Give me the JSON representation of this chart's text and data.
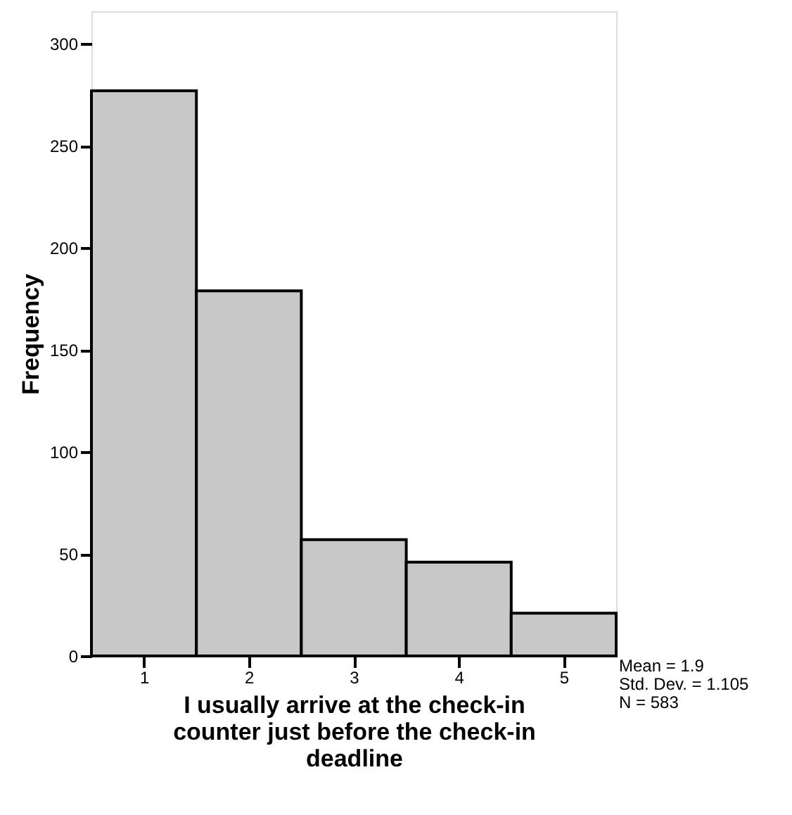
{
  "chart_data": {
    "type": "histogram",
    "bins": [
      0.5,
      1.5,
      2.5,
      3.5,
      4.5,
      5.5
    ],
    "values": [
      277,
      179,
      57,
      46,
      21
    ],
    "color": "#c8c8c8",
    "xlim": [
      0.5,
      5.5
    ],
    "xticks": [
      1,
      2,
      3,
      4,
      5
    ],
    "ylim": [
      0,
      316
    ],
    "yticks": [
      0,
      50,
      100,
      150,
      200,
      250,
      300
    ],
    "xlabel": "I usually arrive at the check-in counter just before the check-in deadline",
    "ylabel": "Frequency",
    "grid": false,
    "annotations": [
      "Mean = 1.9",
      "Std. Dev. = 1.105",
      "N = 583"
    ]
  }
}
